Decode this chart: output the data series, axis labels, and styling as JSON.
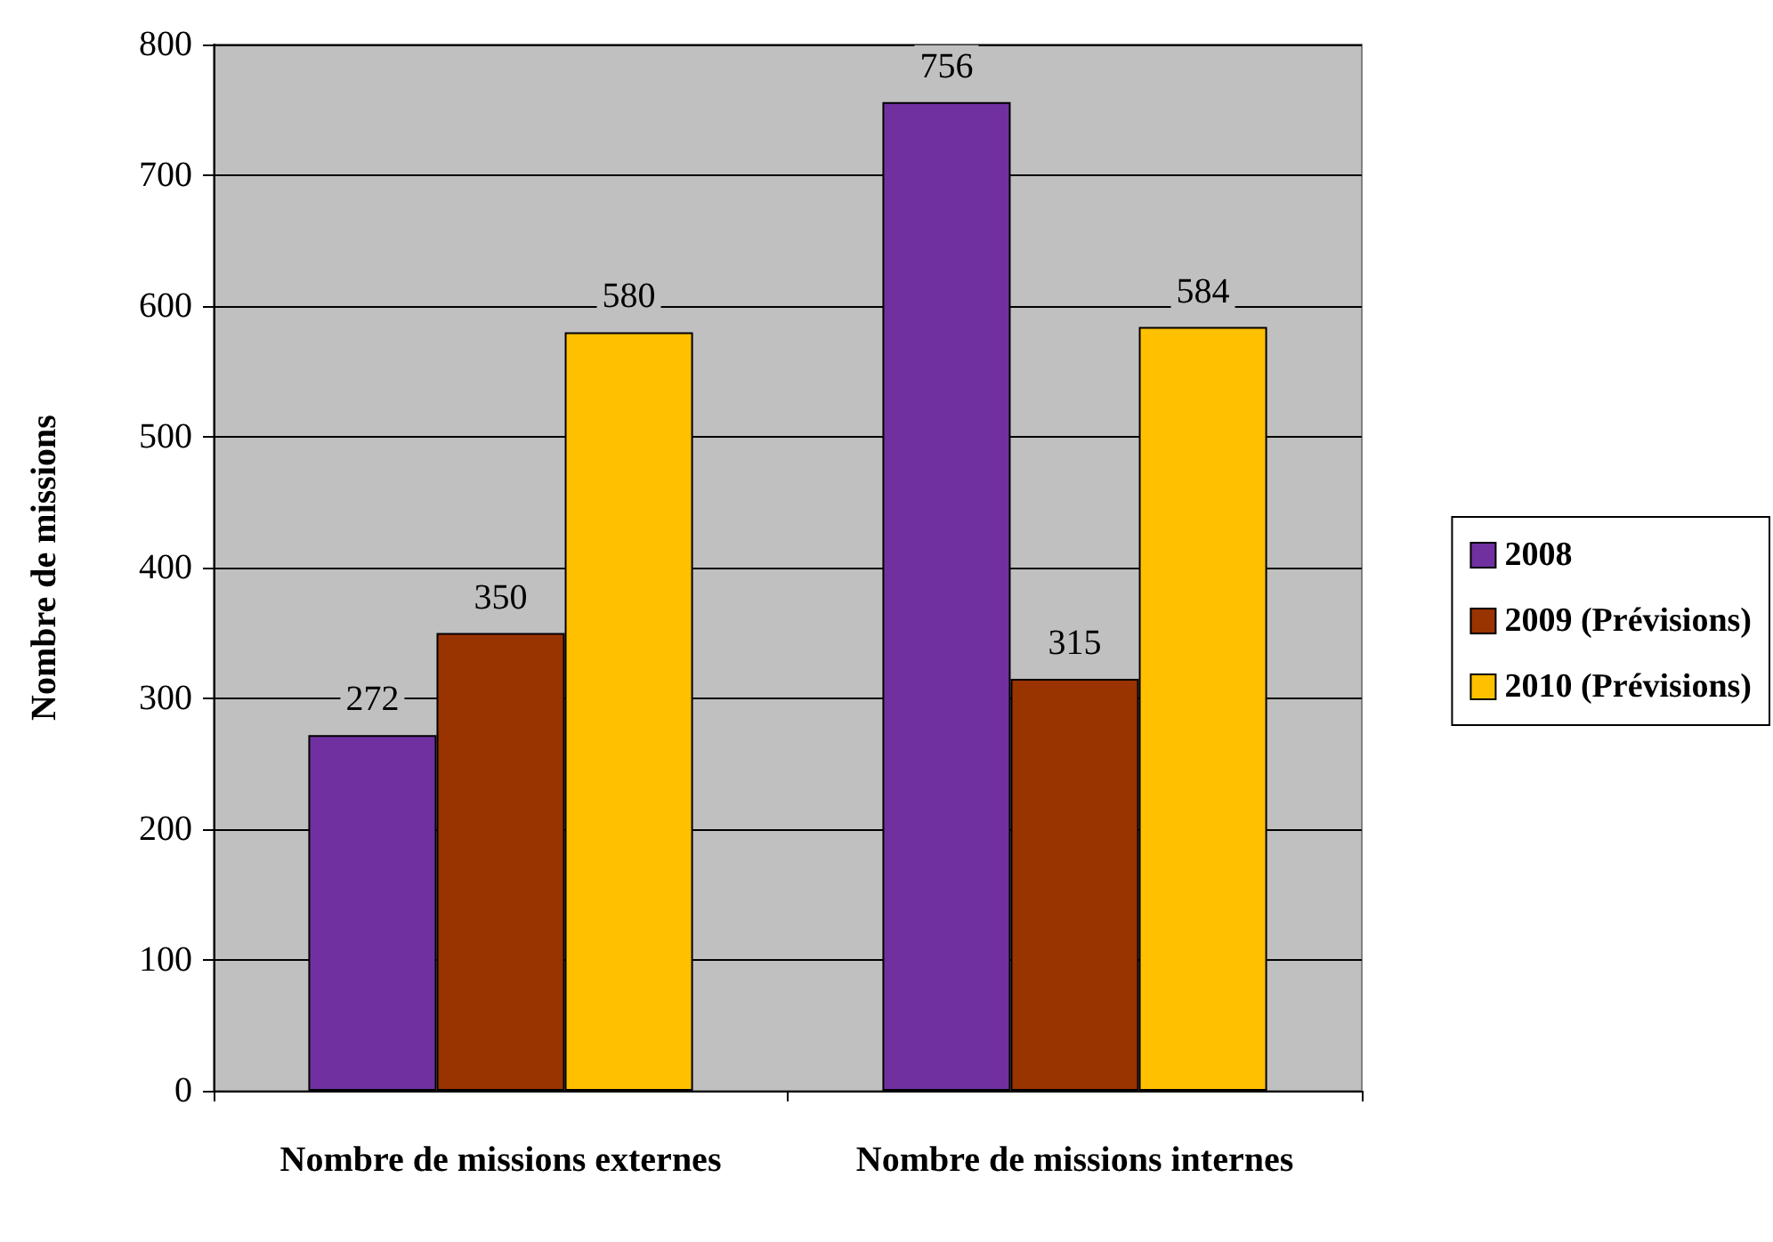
{
  "chart_data": {
    "type": "bar",
    "ylabel": "Nombre de missions",
    "categories": [
      "Nombre de missions externes",
      "Nombre de missions internes"
    ],
    "series": [
      {
        "name": "2008",
        "color": "#7030a0",
        "values": [
          272,
          756
        ]
      },
      {
        "name": "2009 (Prévisions)",
        "color": "#993300",
        "values": [
          350,
          315
        ]
      },
      {
        "name": "2010 (Prévisions)",
        "color": "#ffc000",
        "values": [
          580,
          584
        ]
      }
    ],
    "ylim": [
      0,
      800
    ],
    "yticks": [
      0,
      100,
      200,
      300,
      400,
      500,
      600,
      700,
      800
    ],
    "grid": "y",
    "legend": "right",
    "data_labels": true
  }
}
